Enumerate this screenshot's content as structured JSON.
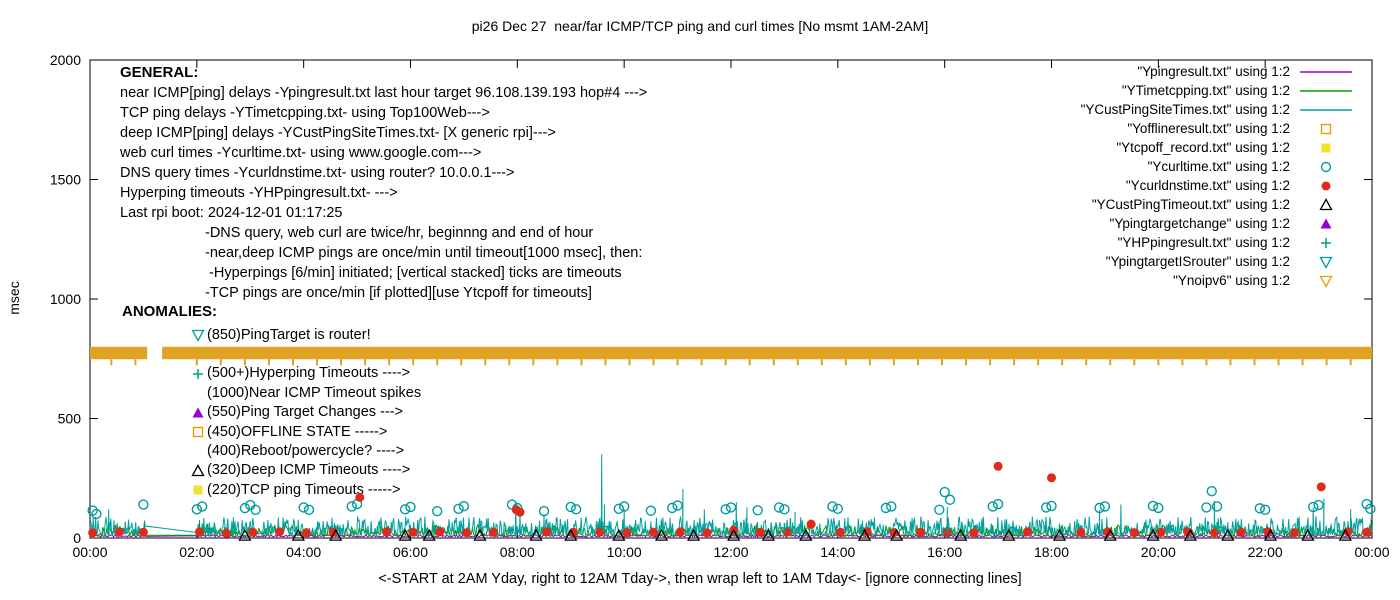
{
  "title": "pi26 Dec 27  near/far ICMP/TCP ping and curl times [No msmt 1AM-2AM]",
  "xlabel": "<-START at 2AM Yday, right to 12AM Tday->, then wrap left to 1AM Tday<- [ignore connecting lines]",
  "ylabel": "msec",
  "general": {
    "heading": "GENERAL:",
    "lines": [
      "near ICMP[ping] delays -Ypingresult.txt last hour target 96.108.139.193 hop#4 --->",
      "TCP ping delays -YTimetcpping.txt- using Top100Web--->",
      "deep ICMP[ping] delays -YCustPingSiteTimes.txt- [X generic rpi]--->",
      "web curl times -Ycurltime.txt- using www.google.com--->",
      "DNS query times -Ycurldnstime.txt- using router? 10.0.0.1--->",
      "Hyperping timeouts -YHPpingresult.txt- --->",
      "Last rpi boot: 2024-12-01 01:17:25"
    ],
    "indented_lines": [
      "-DNS query, web curl are twice/hr, beginnng and end of hour",
      "-near,deep ICMP pings are once/min until timeout[1000 msec], then:",
      " -Hyperpings [6/min] initiated; [vertical stacked] ticks are timeouts",
      "-TCP pings are once/min [if plotted][use Ytcpoff for timeouts]"
    ]
  },
  "anomalies": {
    "heading": "ANOMALIES:",
    "items": [
      {
        "marker": "triangle-down-open",
        "color": "#009C9C",
        "text": "(850)PingTarget is router!"
      },
      {
        "marker": "none",
        "color": "",
        "text": ""
      },
      {
        "marker": "plus",
        "color": "#00A080",
        "text": "(500+)Hyperping Timeouts ---->"
      },
      {
        "marker": "none",
        "color": "",
        "text": "(1000)Near ICMP Timeout spikes"
      },
      {
        "marker": "triangle-filled",
        "color": "#9400D3",
        "text": "(550)Ping Target Changes --->"
      },
      {
        "marker": "square-open",
        "color": "#E69F00",
        "text": "(450)OFFLINE STATE ----->"
      },
      {
        "marker": "none",
        "color": "",
        "text": "(400)Reboot/powercycle? ---->"
      },
      {
        "marker": "triangle-open",
        "color": "#000000",
        "text": "(320)Deep ICMP Timeouts ---->"
      },
      {
        "marker": "square-filled",
        "color": "#EFE32A",
        "text": "(220)TCP ping Timeouts ----->"
      }
    ]
  },
  "legend": [
    {
      "label": "\"Ypingresult.txt\" using 1:2",
      "marker": "line",
      "color": "#9400D3"
    },
    {
      "label": "\"YTimetcpping.txt\" using 1:2",
      "marker": "line",
      "color": "#00A000"
    },
    {
      "label": "\"YCustPingSiteTimes.txt\" using 1:2",
      "marker": "line",
      "color": "#00A0A0"
    },
    {
      "label": "\"Yofflineresult.txt\" using 1:2",
      "marker": "square-open",
      "color": "#E69F00"
    },
    {
      "label": "\"Ytcpoff_record.txt\" using 1:2",
      "marker": "square-filled",
      "color": "#EFE32A"
    },
    {
      "label": "\"Ycurltime.txt\" using 1:2",
      "marker": "circle-open",
      "color": "#009C9C"
    },
    {
      "label": "\"Ycurldnstime.txt\" using 1:2",
      "marker": "circle-filled",
      "color": "#E02A1C"
    },
    {
      "label": "\"YCustPingTimeout.txt\" using 1:2",
      "marker": "triangle-open",
      "color": "#000000"
    },
    {
      "label": "\"Ypingtargetchange\" using 1:2",
      "marker": "triangle-filled",
      "color": "#9400D3"
    },
    {
      "label": "\"YHPpingresult.txt\" using 1:2",
      "marker": "plus",
      "color": "#00A080"
    },
    {
      "label": "\"YpingtargetISrouter\" using 1:2",
      "marker": "triangle-down-open",
      "color": "#009C9C"
    },
    {
      "label": "\"Ynoipv6\" using 1:2",
      "marker": "triangle-down-open",
      "color": "#E69F00"
    }
  ],
  "chart_data": {
    "type": "line",
    "title": "pi26 Dec 27  near/far ICMP/TCP ping and curl times [No msmt 1AM-2AM]",
    "xlabel": "<-START at 2AM Yday, right to 12AM Tday->, then wrap left to 1AM Tday<- [ignore connecting lines]",
    "ylabel": "msec",
    "xlim": [
      0,
      24
    ],
    "ylim": [
      0,
      2000
    ],
    "yticks": [
      0,
      500,
      1000,
      1500,
      2000
    ],
    "xtick_values": [
      0,
      2,
      4,
      6,
      8,
      10,
      12,
      14,
      16,
      18,
      20,
      22,
      24
    ],
    "xtick_labels": [
      "00:00",
      "02:00",
      "04:00",
      "06:00",
      "08:00",
      "10:00",
      "12:00",
      "14:00",
      "16:00",
      "18:00",
      "20:00",
      "22:00",
      "00:00"
    ],
    "grid": false,
    "legend_position": "top-right",
    "no_measurement_gap": [
      1.05,
      2.0
    ],
    "series": [
      {
        "name": "Ypingresult.txt",
        "type": "noisy-line",
        "color": "#9400D3",
        "base": 5,
        "amp": 9,
        "exp": 1.5,
        "step": 0.02,
        "spikes": []
      },
      {
        "name": "YTimetcpping.txt",
        "type": "noisy-line",
        "color": "#00A000",
        "base": 10,
        "amp": 45,
        "exp": 2.2,
        "step": 0.02,
        "spikes": [
          [
            2.05,
            75
          ]
        ]
      },
      {
        "name": "YCustPingSiteTimes.txt",
        "type": "noisy-line",
        "color": "#00A0A0",
        "base": 15,
        "amp": 75,
        "exp": 2.4,
        "step": 0.015,
        "spikes": [
          [
            0.35,
            120
          ],
          [
            7.97,
            150
          ],
          [
            8.05,
            128
          ],
          [
            8.5,
            100
          ],
          [
            9.58,
            350
          ],
          [
            9.63,
            140
          ],
          [
            10.0,
            120
          ],
          [
            11.1,
            205
          ],
          [
            11.5,
            120
          ],
          [
            12.1,
            150
          ],
          [
            12.3,
            128
          ],
          [
            13.2,
            110
          ],
          [
            16.05,
            130
          ],
          [
            18.9,
            118
          ],
          [
            19.3,
            140
          ],
          [
            21.05,
            155
          ],
          [
            22.9,
            128
          ],
          [
            23.1,
            165
          ],
          [
            23.6,
            120
          ]
        ]
      },
      {
        "name": "Ycurltime.txt",
        "type": "scatter",
        "marker": "circle-open",
        "color": "#009C9C",
        "points": [
          [
            0.05,
            115
          ],
          [
            0.12,
            100
          ],
          [
            1.0,
            140
          ],
          [
            2.0,
            120
          ],
          [
            2.1,
            132
          ],
          [
            2.9,
            125
          ],
          [
            3.0,
            138
          ],
          [
            3.1,
            118
          ],
          [
            4.0,
            128
          ],
          [
            4.1,
            118
          ],
          [
            4.9,
            132
          ],
          [
            5.0,
            142
          ],
          [
            5.9,
            120
          ],
          [
            6.0,
            130
          ],
          [
            6.5,
            112
          ],
          [
            6.9,
            122
          ],
          [
            7.0,
            133
          ],
          [
            7.9,
            140
          ],
          [
            8.0,
            125
          ],
          [
            8.5,
            112
          ],
          [
            9.0,
            130
          ],
          [
            9.1,
            120
          ],
          [
            9.9,
            122
          ],
          [
            10.0,
            132
          ],
          [
            10.5,
            114
          ],
          [
            10.9,
            126
          ],
          [
            11.0,
            136
          ],
          [
            11.9,
            120
          ],
          [
            12.0,
            128
          ],
          [
            12.5,
            116
          ],
          [
            12.9,
            128
          ],
          [
            13.0,
            120
          ],
          [
            13.9,
            132
          ],
          [
            14.0,
            122
          ],
          [
            14.9,
            126
          ],
          [
            15.0,
            132
          ],
          [
            15.9,
            118
          ],
          [
            16.0,
            192
          ],
          [
            16.1,
            160
          ],
          [
            16.9,
            132
          ],
          [
            17.0,
            142
          ],
          [
            17.9,
            128
          ],
          [
            18.0,
            134
          ],
          [
            18.9,
            126
          ],
          [
            19.0,
            132
          ],
          [
            19.9,
            134
          ],
          [
            20.0,
            126
          ],
          [
            20.9,
            128
          ],
          [
            21.0,
            196
          ],
          [
            21.1,
            132
          ],
          [
            21.9,
            124
          ],
          [
            22.0,
            118
          ],
          [
            22.9,
            130
          ],
          [
            23.0,
            138
          ],
          [
            23.9,
            142
          ],
          [
            23.97,
            122
          ]
        ]
      },
      {
        "name": "Ycurldnstime.txt",
        "type": "scatter",
        "marker": "circle-filled",
        "color": "#E02A1C",
        "points": [
          [
            0.05,
            22
          ],
          [
            0.55,
            26
          ],
          [
            1.0,
            24
          ],
          [
            2.05,
            26
          ],
          [
            2.55,
            20
          ],
          [
            3.05,
            24
          ],
          [
            3.55,
            26
          ],
          [
            4.05,
            22
          ],
          [
            4.55,
            24
          ],
          [
            5.05,
            170
          ],
          [
            5.55,
            26
          ],
          [
            6.05,
            24
          ],
          [
            6.55,
            26
          ],
          [
            7.05,
            22
          ],
          [
            7.55,
            24
          ],
          [
            7.98,
            118
          ],
          [
            8.05,
            108
          ],
          [
            8.55,
            26
          ],
          [
            9.05,
            24
          ],
          [
            9.55,
            26
          ],
          [
            10.05,
            22
          ],
          [
            10.55,
            24
          ],
          [
            11.05,
            26
          ],
          [
            11.55,
            22
          ],
          [
            12.05,
            32
          ],
          [
            12.55,
            24
          ],
          [
            13.05,
            26
          ],
          [
            13.5,
            58
          ],
          [
            14.05,
            24
          ],
          [
            14.55,
            26
          ],
          [
            15.05,
            22
          ],
          [
            15.55,
            24
          ],
          [
            16.05,
            26
          ],
          [
            16.55,
            22
          ],
          [
            17.0,
            300
          ],
          [
            17.55,
            26
          ],
          [
            18.0,
            252
          ],
          [
            18.55,
            24
          ],
          [
            19.05,
            26
          ],
          [
            19.55,
            22
          ],
          [
            20.05,
            24
          ],
          [
            20.55,
            26
          ],
          [
            21.05,
            22
          ],
          [
            21.55,
            24
          ],
          [
            22.05,
            26
          ],
          [
            22.55,
            22
          ],
          [
            23.05,
            214
          ],
          [
            23.55,
            26
          ],
          [
            23.9,
            24
          ]
        ]
      },
      {
        "name": "YCustPingTimeout.txt",
        "type": "scatter",
        "marker": "triangle-open",
        "color": "#000000",
        "points": [
          [
            2.9,
            10
          ],
          [
            3.9,
            10
          ],
          [
            4.6,
            10
          ],
          [
            5.9,
            10
          ],
          [
            6.35,
            10
          ],
          [
            7.3,
            10
          ],
          [
            8.35,
            10
          ],
          [
            9.0,
            10
          ],
          [
            9.9,
            10
          ],
          [
            10.7,
            10
          ],
          [
            11.3,
            10
          ],
          [
            12.05,
            10
          ],
          [
            12.7,
            10
          ],
          [
            13.4,
            10
          ],
          [
            14.5,
            10
          ],
          [
            15.1,
            10
          ],
          [
            16.3,
            10
          ],
          [
            17.2,
            10
          ],
          [
            18.15,
            10
          ],
          [
            19.1,
            10
          ],
          [
            19.9,
            10
          ],
          [
            20.6,
            10
          ],
          [
            21.3,
            10
          ],
          [
            22.1,
            10
          ],
          [
            22.8,
            10
          ],
          [
            23.5,
            10
          ]
        ]
      },
      {
        "name": "YHPpingresult.txt",
        "type": "scatter",
        "marker": "plus",
        "color": "#00A080",
        "points": [
          [
            2.2,
            40
          ],
          [
            9.6,
            48
          ],
          [
            13.0,
            42
          ],
          [
            16.05,
            40
          ],
          [
            21.1,
            46
          ]
        ]
      },
      {
        "name": "Ynoipv6",
        "type": "band",
        "color": "#DFA321",
        "y_top": 800,
        "y_bottom": 748,
        "gap": [
          1.07,
          1.35
        ],
        "tick_xs": [
          0.4,
          0.85,
          2.0,
          2.45,
          2.9,
          3.35,
          3.8,
          4.25,
          4.7,
          5.15,
          5.6,
          6.05,
          6.5,
          6.95,
          7.4,
          7.85,
          8.3,
          8.75,
          9.2,
          9.65,
          10.1,
          10.55,
          11.0,
          11.45,
          11.9,
          12.35,
          12.8,
          13.25,
          13.7,
          14.15,
          14.6,
          15.05,
          15.5,
          15.95,
          16.4,
          16.85,
          17.3,
          17.75,
          18.2,
          18.65,
          19.1,
          19.55,
          20.0,
          20.45,
          20.9,
          21.35,
          21.8,
          22.25,
          22.7,
          23.15,
          23.6
        ]
      }
    ]
  }
}
